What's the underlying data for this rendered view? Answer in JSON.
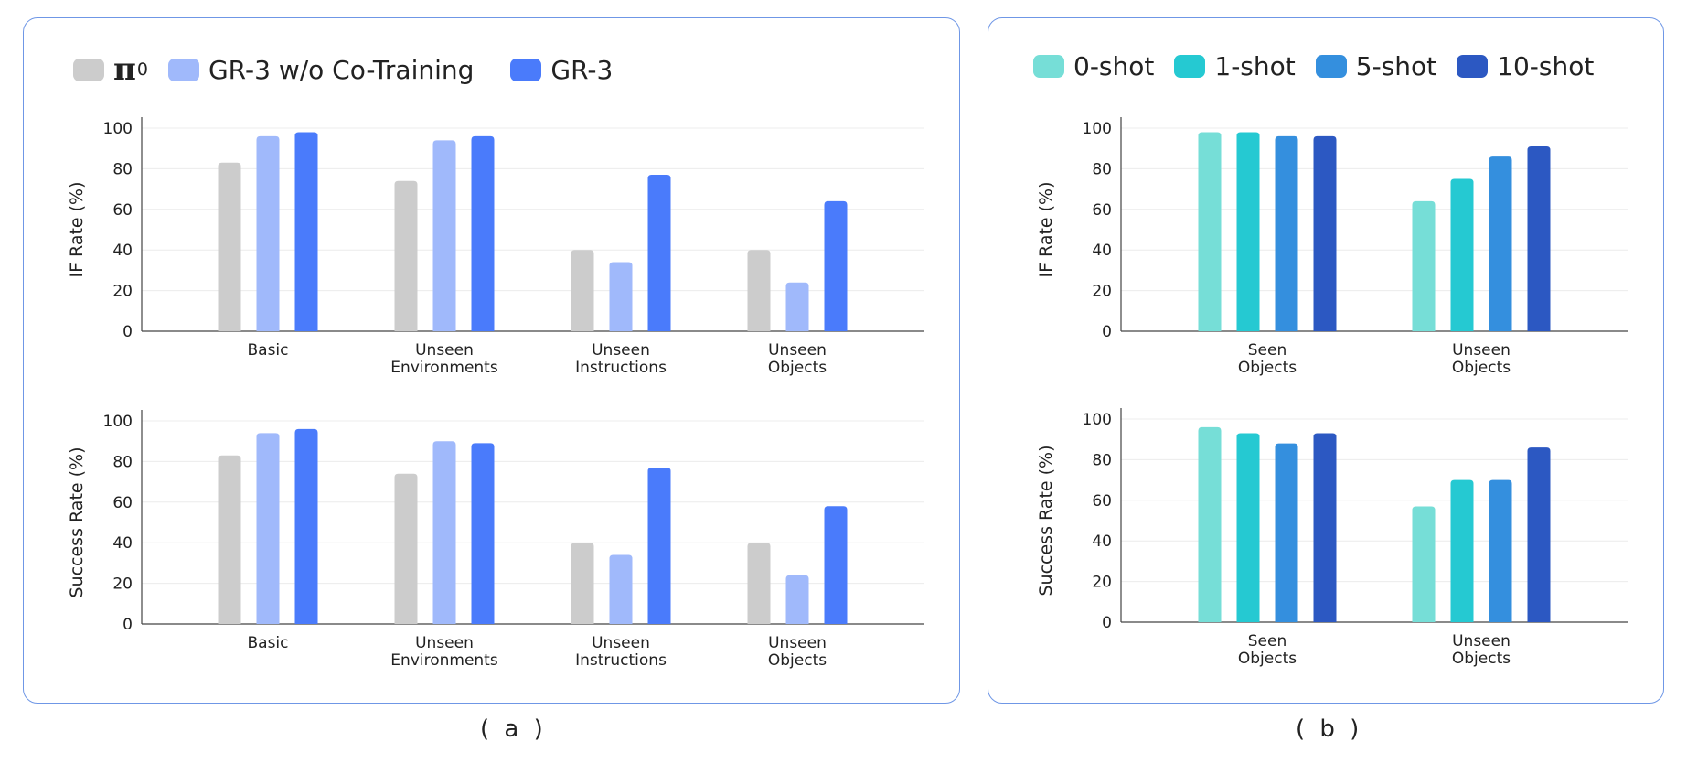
{
  "panel_a": {
    "legend": [
      {
        "label": "π",
        "subscript": "0",
        "color": "#cccccc"
      },
      {
        "label": "GR-3 w/o Co-Training",
        "subscript": "",
        "color": "#a0b9fb"
      },
      {
        "label": "GR-3",
        "subscript": "",
        "color": "#4a7bfb"
      }
    ],
    "caption": "( a )"
  },
  "panel_b": {
    "legend": [
      {
        "label": "0-shot",
        "color": "#76ded7"
      },
      {
        "label": "1-shot",
        "color": "#25c9d2"
      },
      {
        "label": "5-shot",
        "color": "#348fde"
      },
      {
        "label": "10-shot",
        "color": "#2c58c2"
      }
    ],
    "caption": "( b )"
  },
  "chart_data": [
    {
      "id": "a-top",
      "type": "bar",
      "ylabel": "IF Rate (%)",
      "ylim": [
        0,
        100
      ],
      "yticks": [
        0,
        20,
        40,
        60,
        80,
        100
      ],
      "grid": true,
      "categories": [
        [
          "Basic"
        ],
        [
          "Unseen",
          "Environments"
        ],
        [
          "Unseen",
          "Instructions"
        ],
        [
          "Unseen",
          "Objects"
        ]
      ],
      "series": [
        {
          "name": "π0",
          "color": "#cccccc",
          "values": [
            83,
            74,
            40,
            40
          ]
        },
        {
          "name": "GR-3 w/o Co-Training",
          "color": "#a0b9fb",
          "values": [
            96,
            94,
            34,
            24
          ]
        },
        {
          "name": "GR-3",
          "color": "#4a7bfb",
          "values": [
            98,
            96,
            77,
            64
          ]
        }
      ]
    },
    {
      "id": "a-bottom",
      "type": "bar",
      "ylabel": "Success Rate (%)",
      "ylim": [
        0,
        100
      ],
      "yticks": [
        0,
        20,
        40,
        60,
        80,
        100
      ],
      "grid": true,
      "categories": [
        [
          "Basic"
        ],
        [
          "Unseen",
          "Environments"
        ],
        [
          "Unseen",
          "Instructions"
        ],
        [
          "Unseen",
          "Objects"
        ]
      ],
      "series": [
        {
          "name": "π0",
          "color": "#cccccc",
          "values": [
            83,
            74,
            40,
            40
          ]
        },
        {
          "name": "GR-3 w/o Co-Training",
          "color": "#a0b9fb",
          "values": [
            94,
            90,
            34,
            24
          ]
        },
        {
          "name": "GR-3",
          "color": "#4a7bfb",
          "values": [
            96,
            89,
            77,
            58
          ]
        }
      ]
    },
    {
      "id": "b-top",
      "type": "bar",
      "ylabel": "IF Rate (%)",
      "ylim": [
        0,
        100
      ],
      "yticks": [
        0,
        20,
        40,
        60,
        80,
        100
      ],
      "grid": true,
      "categories": [
        [
          "Seen",
          "Objects"
        ],
        [
          "Unseen",
          "Objects"
        ]
      ],
      "series": [
        {
          "name": "0-shot",
          "color": "#76ded7",
          "values": [
            98,
            64
          ]
        },
        {
          "name": "1-shot",
          "color": "#25c9d2",
          "values": [
            98,
            75
          ]
        },
        {
          "name": "5-shot",
          "color": "#348fde",
          "values": [
            96,
            86
          ]
        },
        {
          "name": "10-shot",
          "color": "#2c58c2",
          "values": [
            96,
            91
          ]
        }
      ]
    },
    {
      "id": "b-bottom",
      "type": "bar",
      "ylabel": "Success Rate (%)",
      "ylim": [
        0,
        100
      ],
      "yticks": [
        0,
        20,
        40,
        60,
        80,
        100
      ],
      "grid": true,
      "categories": [
        [
          "Seen",
          "Objects"
        ],
        [
          "Unseen",
          "Objects"
        ]
      ],
      "series": [
        {
          "name": "0-shot",
          "color": "#76ded7",
          "values": [
            96,
            57
          ]
        },
        {
          "name": "1-shot",
          "color": "#25c9d2",
          "values": [
            93,
            70
          ]
        },
        {
          "name": "5-shot",
          "color": "#348fde",
          "values": [
            88,
            70
          ]
        },
        {
          "name": "10-shot",
          "color": "#2c58c2",
          "values": [
            93,
            86
          ]
        }
      ]
    }
  ]
}
